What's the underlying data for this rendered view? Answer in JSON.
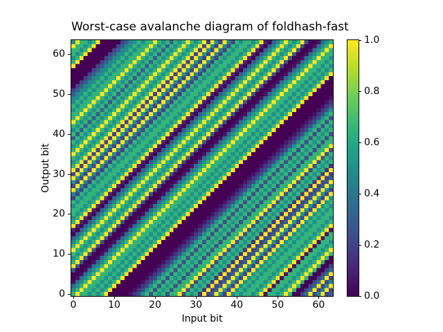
{
  "title": "Worst-case avalanche diagram of foldhash-fast",
  "axes": {
    "xlabel": "Input bit",
    "ylabel": "Output bit",
    "x_ticks": [
      0,
      10,
      20,
      30,
      40,
      50,
      60
    ],
    "y_ticks": [
      0,
      10,
      20,
      30,
      40,
      50,
      60
    ]
  },
  "colorbar": {
    "min": 0.0,
    "max": 1.0,
    "tick_labels": [
      "1.0",
      "0.8",
      "0.6",
      "0.4",
      "0.2",
      "0.0"
    ],
    "tick_values": [
      1.0,
      0.8,
      0.6,
      0.4,
      0.2,
      0.0
    ],
    "colormap_name": "viridis",
    "colormap_stops": [
      [
        0.0,
        "#440154"
      ],
      [
        0.1,
        "#482475"
      ],
      [
        0.2,
        "#414487"
      ],
      [
        0.3,
        "#355f8d"
      ],
      [
        0.4,
        "#2a788e"
      ],
      [
        0.5,
        "#21918c"
      ],
      [
        0.6,
        "#22a884"
      ],
      [
        0.7,
        "#44bf70"
      ],
      [
        0.8,
        "#7ad151"
      ],
      [
        0.9,
        "#bddf26"
      ],
      [
        1.0,
        "#fde725"
      ]
    ]
  },
  "chart_data": {
    "type": "heatmap",
    "title": "Worst-case avalanche diagram of foldhash-fast",
    "xlabel": "Input bit",
    "ylabel": "Output bit",
    "x_range": [
      0,
      63
    ],
    "y_range": [
      0,
      63
    ],
    "value_range": [
      0.0,
      1.0
    ],
    "grid_size": 64,
    "value_rule": "value[output_bit][input_bit] = diagonal_values[(input_bit - output_bit) - diagonal_offset_min]",
    "diagonal_offset_min": -63,
    "diagonal_values": [
      0.5,
      1.0,
      0.65,
      0.65,
      0.5,
      0.65,
      1.0,
      0.0,
      0.0,
      0.0,
      0.0,
      0.0,
      0.2,
      0.3,
      0.45,
      0.5,
      0.65,
      0.5,
      0.65,
      0.65,
      1.0,
      0.65,
      0.5,
      0.65,
      0.3,
      0.65,
      0.5,
      0.65,
      1.0,
      0.65,
      0.5,
      0.65,
      1.0,
      0.2,
      1.0,
      0.5,
      0.2,
      1.0,
      0.45,
      0.2,
      0.65,
      0.5,
      0.65,
      0.65,
      0.5,
      0.65,
      1.0,
      0.1,
      0.0,
      0.3,
      0.45,
      0.65,
      1.0,
      0.65,
      0.5,
      0.65,
      1.0,
      0.25,
      0.0,
      0.0,
      0.05,
      0.35,
      0.5,
      0.65,
      1.0,
      0.65,
      0.65,
      0.5,
      0.65,
      0.5,
      0.65,
      1.0,
      0.0,
      0.0,
      0.0,
      0.0,
      0.0,
      0.05,
      0.15,
      0.25,
      0.5,
      0.65,
      0.25,
      0.65,
      0.5,
      0.65,
      0.25,
      0.65,
      0.65,
      1.0,
      0.25,
      0.65,
      0.5,
      0.65,
      0.15,
      1.0,
      0.2,
      0.3,
      1.0,
      0.5,
      0.2,
      1.0,
      0.5,
      0.65,
      0.5,
      0.65,
      0.65,
      0.5,
      0.65,
      1.0,
      0.05,
      0.65,
      0.65,
      0.5,
      0.65,
      1.0,
      0.65,
      0.0,
      0.0,
      0.2,
      0.35,
      1.0,
      0.2,
      0.45,
      1.0,
      0.2,
      0.3
    ]
  }
}
